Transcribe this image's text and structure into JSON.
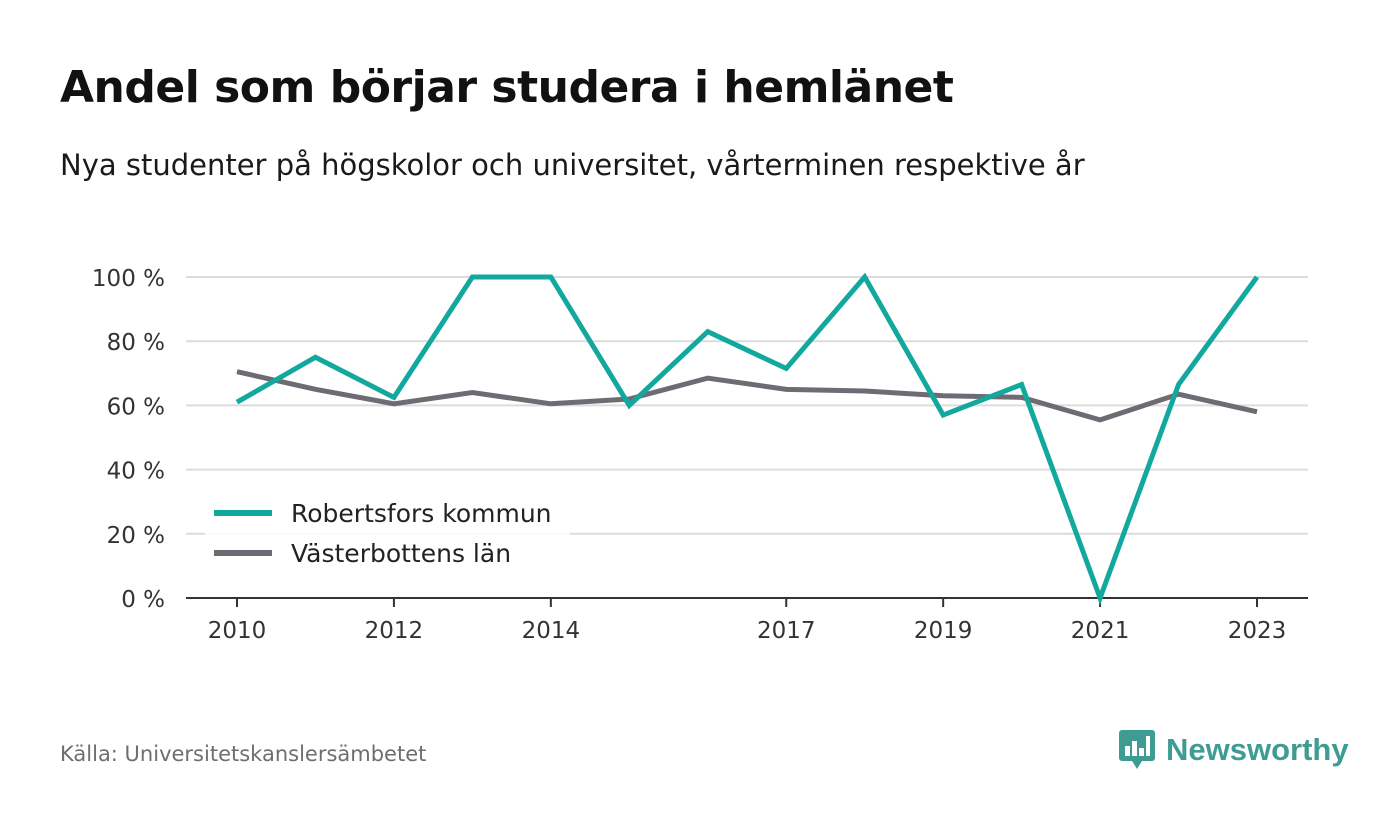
{
  "title": "Andel som börjar studera i hemlänet",
  "subtitle": "Nya studenter på högskolor och universitet, vårterminen respektive år",
  "source": "Källa: Universitetskanslersämbetet",
  "brand": {
    "name": "Newsworthy",
    "icon": "newsworthy-logo-icon",
    "color": "#3f9c92"
  },
  "chart_data": {
    "type": "line",
    "x": [
      2010,
      2011,
      2012,
      2013,
      2014,
      2015,
      2016,
      2017,
      2018,
      2019,
      2020,
      2021,
      2022,
      2023
    ],
    "xticks": [
      2010,
      2012,
      2014,
      2017,
      2019,
      2021,
      2023
    ],
    "yticks": [
      0,
      20,
      40,
      60,
      80,
      100
    ],
    "ytick_suffix": " %",
    "ylim": [
      0,
      100
    ],
    "xlim": [
      2009.35,
      2023.65
    ],
    "grid": true,
    "legend_position": "bottom-left",
    "series": [
      {
        "name": "Robertsfors kommun",
        "color": "#13a89e",
        "values": [
          61,
          75,
          62.5,
          100,
          100,
          60,
          83,
          71.5,
          100,
          57,
          66.5,
          0,
          66.5,
          100
        ]
      },
      {
        "name": "Västerbottens län",
        "color": "#6f6b73",
        "values": [
          70.5,
          65,
          60.5,
          64,
          60.5,
          62,
          68.5,
          65,
          64.5,
          63,
          62.5,
          55.5,
          63.5,
          58
        ]
      }
    ]
  }
}
